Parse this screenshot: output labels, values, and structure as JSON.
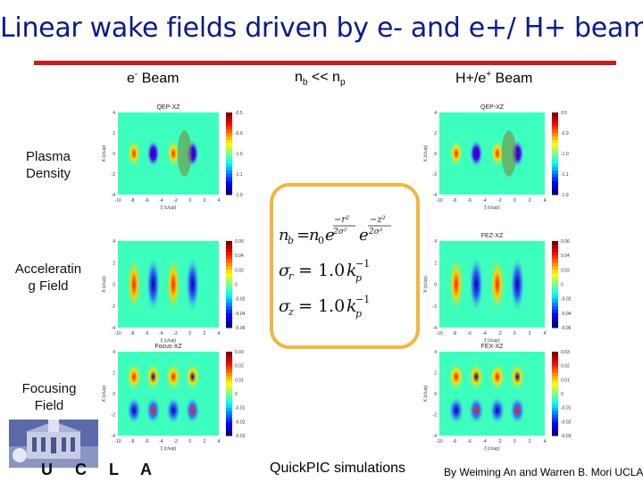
{
  "title": "Linear wake fields driven by e- and e+/ H+ beams",
  "columns": {
    "left": {
      "main": "e",
      "sup": "-",
      "rest": " Beam"
    },
    "middle": {
      "n": "n",
      "sub1": "b",
      "mid": " << n",
      "sub2": "p"
    },
    "right": {
      "main": "H+/e",
      "sup": "+",
      "rest": " Beam"
    }
  },
  "rows": {
    "plasma_density": [
      "Plasma",
      "Density"
    ],
    "accelerating_field": [
      "Acceleratin",
      "g Field"
    ],
    "focusing_field": [
      "Focusing",
      "Field"
    ]
  },
  "plot_titles": {
    "left_top": "QEP-XZ",
    "right_top": "QEP-XZ",
    "left_mid": "",
    "right_mid": "FEZ-XZ",
    "left_bot": "Focus-XZ",
    "right_bot": "FEX-XZ"
  },
  "plot_axis": {
    "x_ticks": [
      "-10",
      "-8",
      "-6",
      "-4",
      "-2",
      "0",
      "2",
      "4"
    ],
    "y_ticks": [
      "4",
      "2",
      "0",
      "-2",
      "-4"
    ],
    "xlabel": "ξ (c/ωp)",
    "ylabel": "X (c/ωp)"
  },
  "colorbars": {
    "density": [
      "-0.5",
      "-0.9",
      "-1.0",
      "-1.1",
      "-1.9"
    ],
    "density_right": [
      "0.5",
      "-0.9",
      "-1.0",
      "-1.1",
      "-1.9"
    ],
    "accel": [
      "0.06",
      "0.04",
      "0.02",
      "0",
      "-0.02",
      "-0.04",
      "-0.06"
    ],
    "focus": [
      "0.03",
      "0.02",
      "0.01",
      "0",
      "-0.01",
      "-0.02",
      "-0.03"
    ]
  },
  "equations": {
    "nb": "n_b = n_0 e^(−r²/2σr²) e^(−z²/2σz²)",
    "sigma_r": "σr = 1.0 kp⁻¹",
    "sigma_z": "σz = 1.0 kp⁻¹"
  },
  "footer": {
    "simulation": "QuickPIC simulations",
    "credit": "By Weiming An and Warren B. Mori UCLA",
    "ucla": "U C L A"
  },
  "colors": {
    "title": "#0a1a8c",
    "rule": "#c81e1e",
    "eq_border": "#f0b640"
  }
}
